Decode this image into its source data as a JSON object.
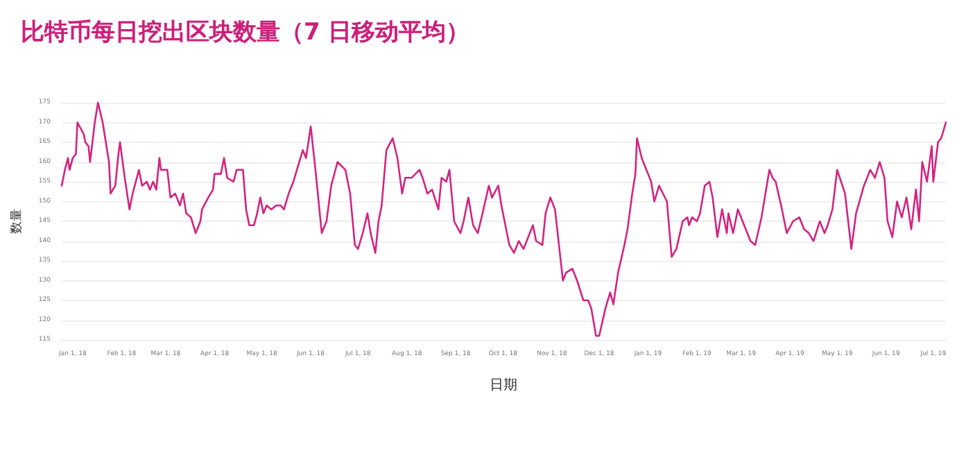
{
  "chart_data": {
    "type": "line",
    "title": "比特币每日挖出区块数量（7 日移动平均）",
    "xlabel": "日期",
    "ylabel": "数量",
    "x": [
      "2017-12-25",
      "2017-12-27",
      "2017-12-29",
      "2017-12-30",
      "2018-01-01",
      "2018-01-03",
      "2018-01-04",
      "2018-01-08",
      "2018-01-09",
      "2018-01-11",
      "2018-01-12",
      "2018-01-15",
      "2018-01-17",
      "2018-01-20",
      "2018-01-22",
      "2018-01-24",
      "2018-01-25",
      "2018-01-28",
      "2018-01-30",
      "2018-01-31",
      "2018-02-03",
      "2018-02-06",
      "2018-02-08",
      "2018-02-12",
      "2018-02-14",
      "2018-02-17",
      "2018-02-19",
      "2018-02-21",
      "2018-02-23",
      "2018-02-25",
      "2018-02-26",
      "2018-03-02",
      "2018-03-04",
      "2018-03-07",
      "2018-03-10",
      "2018-03-12",
      "2018-03-14",
      "2018-03-17",
      "2018-03-20",
      "2018-03-23",
      "2018-03-24",
      "2018-03-28",
      "2018-03-31",
      "2018-04-01",
      "2018-04-05",
      "2018-04-07",
      "2018-04-09",
      "2018-04-13",
      "2018-04-15",
      "2018-04-19",
      "2018-04-21",
      "2018-04-23",
      "2018-04-26",
      "2018-04-28",
      "2018-04-30",
      "2018-05-02",
      "2018-05-04",
      "2018-05-07",
      "2018-05-10",
      "2018-05-13",
      "2018-05-15",
      "2018-05-18",
      "2018-05-21",
      "2018-05-24",
      "2018-05-27",
      "2018-05-29",
      "2018-06-01",
      "2018-06-04",
      "2018-06-08",
      "2018-06-11",
      "2018-06-14",
      "2018-06-18",
      "2018-06-23",
      "2018-06-26",
      "2018-06-29",
      "2018-07-01",
      "2018-07-04",
      "2018-07-07",
      "2018-07-09",
      "2018-07-12",
      "2018-07-14",
      "2018-07-16",
      "2018-07-19",
      "2018-07-23",
      "2018-07-26",
      "2018-07-29",
      "2018-07-31",
      "2018-08-04",
      "2018-08-09",
      "2018-08-11",
      "2018-08-14",
      "2018-08-17",
      "2018-08-21",
      "2018-08-23",
      "2018-08-26",
      "2018-08-28",
      "2018-08-31",
      "2018-09-04",
      "2018-09-06",
      "2018-09-09",
      "2018-09-12",
      "2018-09-15",
      "2018-09-18",
      "2018-09-22",
      "2018-09-24",
      "2018-09-28",
      "2018-09-30",
      "2018-10-05",
      "2018-10-08",
      "2018-10-11",
      "2018-10-14",
      "2018-10-18",
      "2018-10-20",
      "2018-10-22",
      "2018-10-26",
      "2018-10-28",
      "2018-10-31",
      "2018-11-03",
      "2018-11-08",
      "2018-11-10",
      "2018-11-14",
      "2018-11-17",
      "2018-11-21",
      "2018-11-24",
      "2018-11-26",
      "2018-11-29",
      "2018-12-01",
      "2018-12-05",
      "2018-12-08",
      "2018-12-10",
      "2018-12-13",
      "2018-12-17",
      "2018-12-19",
      "2018-12-22",
      "2018-12-24",
      "2018-12-25",
      "2018-12-28",
      "2018-12-31",
      "2019-01-03",
      "2019-01-05",
      "2019-01-08",
      "2019-01-13",
      "2019-01-16",
      "2019-01-19",
      "2019-01-23",
      "2019-01-26",
      "2019-01-27",
      "2019-01-29",
      "2019-02-01",
      "2019-02-03",
      "2019-02-06",
      "2019-02-09",
      "2019-02-11",
      "2019-02-14",
      "2019-02-17",
      "2019-02-20",
      "2019-02-21",
      "2019-02-24",
      "2019-02-27",
      "2019-03-01",
      "2019-03-07",
      "2019-03-10",
      "2019-03-14",
      "2019-03-19",
      "2019-03-21",
      "2019-03-23",
      "2019-03-27",
      "2019-03-30",
      "2019-04-03",
      "2019-04-07",
      "2019-04-10",
      "2019-04-13",
      "2019-04-16",
      "2019-04-20",
      "2019-04-23",
      "2019-04-25",
      "2019-04-28",
      "2019-05-01",
      "2019-05-06",
      "2019-05-10",
      "2019-05-13",
      "2019-05-18",
      "2019-05-22",
      "2019-05-25",
      "2019-05-28",
      "2019-05-31",
      "2019-06-02",
      "2019-06-05",
      "2019-06-08",
      "2019-06-11",
      "2019-06-14",
      "2019-06-17",
      "2019-06-20",
      "2019-06-22",
      "2019-06-24",
      "2019-06-27",
      "2019-06-30",
      "2019-07-01",
      "2019-07-04",
      "2019-07-06",
      "2019-07-09"
    ],
    "series": [
      {
        "color": "#d2237f",
        "values": [
          154,
          158,
          161,
          158,
          161,
          162,
          170,
          167,
          165,
          164,
          160,
          170,
          175,
          170,
          165,
          160,
          152,
          154,
          162,
          165,
          156,
          148,
          152,
          158,
          154,
          155,
          153,
          155,
          153,
          161,
          158,
          158,
          151,
          152,
          149,
          152,
          147,
          146,
          142,
          145,
          148,
          151,
          153,
          157,
          157,
          161,
          156,
          155,
          158,
          158,
          148,
          144,
          144,
          147,
          151,
          147,
          149,
          148,
          149,
          149,
          148,
          152,
          155,
          159,
          163,
          161,
          169,
          158,
          142,
          145,
          154,
          160,
          158,
          152,
          139,
          138,
          142,
          147,
          142,
          137,
          145,
          149,
          163,
          166,
          161,
          152,
          156,
          156,
          158,
          156,
          152,
          153,
          148,
          156,
          155,
          158,
          145,
          142,
          145,
          151,
          144,
          142,
          147,
          154,
          151,
          154,
          149,
          139,
          137,
          140,
          138,
          142,
          144,
          140,
          139,
          147,
          151,
          148,
          130,
          132,
          133,
          130,
          125,
          125,
          123,
          116,
          116,
          123,
          127,
          124,
          132,
          139,
          143,
          152,
          157,
          166,
          161,
          158,
          155,
          150,
          154,
          150,
          136,
          138,
          145,
          146,
          144,
          146,
          145,
          147,
          154,
          155,
          151,
          141,
          148,
          142,
          147,
          142,
          148,
          146,
          140,
          139,
          146,
          158,
          156,
          155,
          148,
          142,
          145,
          146,
          143,
          142,
          140,
          145,
          142,
          144,
          148,
          158,
          152,
          138,
          147,
          154,
          158,
          156,
          160,
          156,
          145,
          141,
          150,
          146,
          151,
          143,
          153,
          145,
          160,
          155,
          164,
          155,
          165,
          166,
          170
        ]
      }
    ],
    "xlim": [
      "2017-12-25",
      "2019-07-09"
    ],
    "xticks": [
      {
        "value": "2018-01-01",
        "label": "Jan 1, 18"
      },
      {
        "value": "2018-02-01",
        "label": "Feb 1, 18"
      },
      {
        "value": "2018-03-01",
        "label": "Mar 1, 18"
      },
      {
        "value": "2018-04-01",
        "label": "Apr 1, 18"
      },
      {
        "value": "2018-05-01",
        "label": "May 1, 18"
      },
      {
        "value": "2018-06-01",
        "label": "Jun 1, 18"
      },
      {
        "value": "2018-07-01",
        "label": "Jul 1, 18"
      },
      {
        "value": "2018-08-01",
        "label": "Aug 1, 18"
      },
      {
        "value": "2018-09-01",
        "label": "Sep 1, 18"
      },
      {
        "value": "2018-10-01",
        "label": "Oct 1, 18"
      },
      {
        "value": "2018-11-01",
        "label": "Nov 1, 18"
      },
      {
        "value": "2018-12-01",
        "label": "Dec 1, 18"
      },
      {
        "value": "2019-01-01",
        "label": "Jan 1, 19"
      },
      {
        "value": "2019-02-01",
        "label": "Feb 1, 19"
      },
      {
        "value": "2019-03-01",
        "label": "Mar 1, 19"
      },
      {
        "value": "2019-04-01",
        "label": "Apr 1, 19"
      },
      {
        "value": "2019-05-01",
        "label": "May 1, 19"
      },
      {
        "value": "2019-06-01",
        "label": "Jun 1, 19"
      },
      {
        "value": "2019-07-01",
        "label": "Jul 1, 19"
      }
    ],
    "ylim": [
      115,
      175
    ],
    "yticks": [
      115,
      120,
      125,
      130,
      135,
      140,
      145,
      150,
      155,
      160,
      165,
      170,
      175
    ],
    "grid": "y",
    "marker": "none",
    "line_style": "solid"
  }
}
